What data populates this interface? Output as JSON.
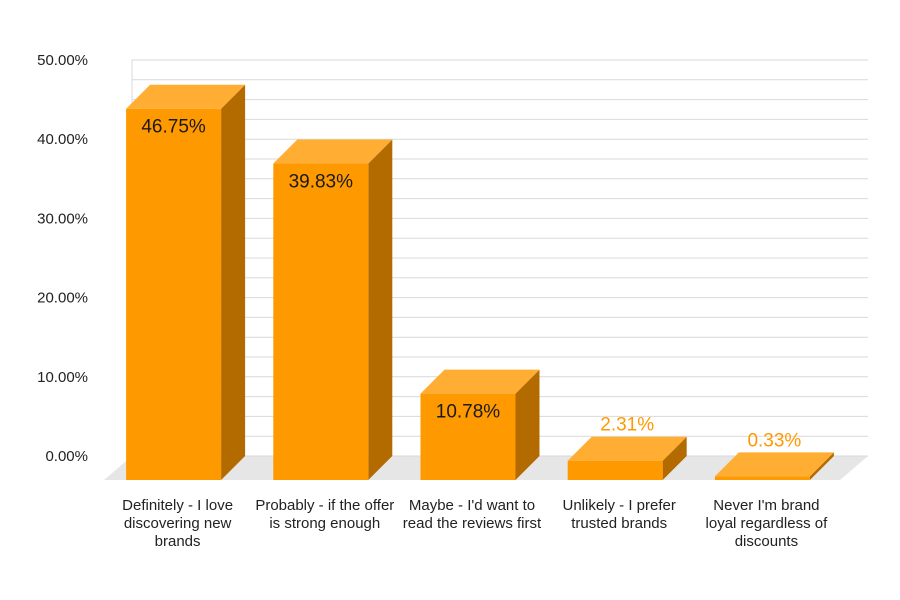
{
  "chart_data": {
    "type": "bar",
    "style": "3d-column",
    "categories": [
      "Definitely - I love discovering new brands",
      "Probably  - if the offer is strong enough",
      "Maybe - I'd want to read the reviews first",
      "Unlikely - I prefer trusted brands",
      "Never I'm brand loyal regardless of discounts"
    ],
    "values": [
      46.75,
      39.83,
      10.78,
      2.31,
      0.33
    ],
    "data_labels": [
      "46.75%",
      "39.83%",
      "10.78%",
      "2.31%",
      "0.33%"
    ],
    "y_ticks": [
      "0.00%",
      "10.00%",
      "20.00%",
      "30.00%",
      "40.00%",
      "50.00%"
    ],
    "ylim": [
      0,
      50
    ],
    "grid": true,
    "legend": "none",
    "colors": {
      "bar_front": "#ff9900",
      "bar_top": "#ffae33",
      "bar_side": "#b36b00",
      "floor": "#e6e6e6",
      "gridline": "#d9d9d9",
      "label_inside": "#1a1a1a",
      "label_outside": "#ff9900"
    }
  }
}
